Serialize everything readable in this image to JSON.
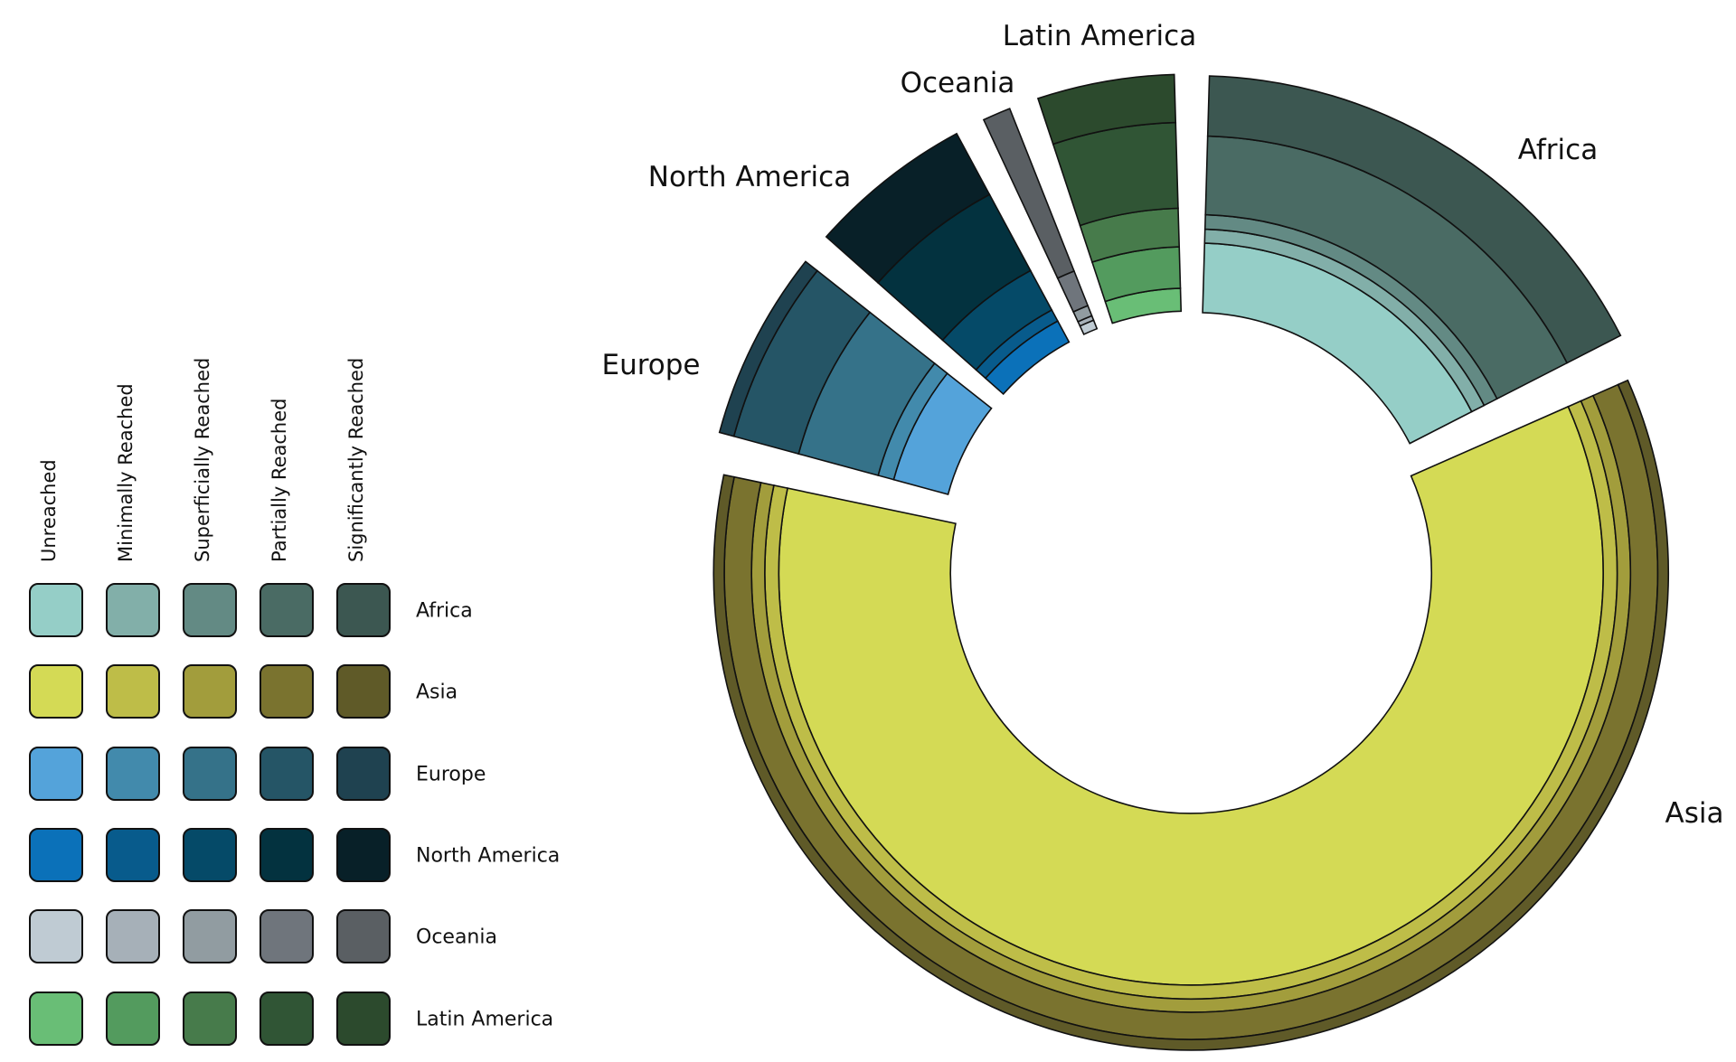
{
  "chart_data": {
    "type": "pie",
    "subtype": "exploded radial stacked donut",
    "levels": [
      "Unreached",
      "Minimally Reached",
      "Superficially Reached",
      "Partially Reached",
      "Significantly Reached"
    ],
    "regions": [
      {
        "name": "Africa",
        "angular_share_pct": 18.0,
        "level_pct": [
          29.4,
          5.9,
          6.1,
          33.2,
          25.4
        ],
        "colors": [
          "#95cec7",
          "#82afa9",
          "#638a84",
          "#4a6b64",
          "#3c5751"
        ]
      },
      {
        "name": "Asia",
        "angular_share_pct": 63.4,
        "level_pct": [
          72.5,
          5.9,
          5.6,
          11.5,
          4.5
        ],
        "colors": [
          "#d4da55",
          "#bebd48",
          "#a29d3c",
          "#7a732f",
          "#5f5a28"
        ]
      },
      {
        "name": "Europe",
        "angular_share_pct": 6.8,
        "level_pct": [
          23.8,
          6.8,
          34.8,
          28.3,
          6.3
        ],
        "colors": [
          "#54a3da",
          "#428aac",
          "#357289",
          "#255566",
          "#1f4250"
        ]
      },
      {
        "name": "North America",
        "angular_share_pct": 5.9,
        "level_pct": [
          10.1,
          5.3,
          18.9,
          36.5,
          29.2
        ],
        "colors": [
          "#0b71b9",
          "#085b8c",
          "#054a68",
          "#03323f",
          "#082028"
        ]
      },
      {
        "name": "Oceania",
        "angular_share_pct": 1.0,
        "level_pct": [
          3.9,
          2.0,
          4.6,
          15.7,
          73.8
        ],
        "colors": [
          "#bfcbd3",
          "#a6b0b8",
          "#919ca1",
          "#6f757c",
          "#5a5f63"
        ]
      },
      {
        "name": "Latin America",
        "angular_share_pct": 4.9,
        "level_pct": [
          9.7,
          17.5,
          16.3,
          36.2,
          20.3
        ],
        "colors": [
          "#69be76",
          "#539b5e",
          "#477b4b",
          "#305535",
          "#2c4a2d"
        ]
      }
    ],
    "legend_placement": "left",
    "stroke_color": "#111111"
  }
}
